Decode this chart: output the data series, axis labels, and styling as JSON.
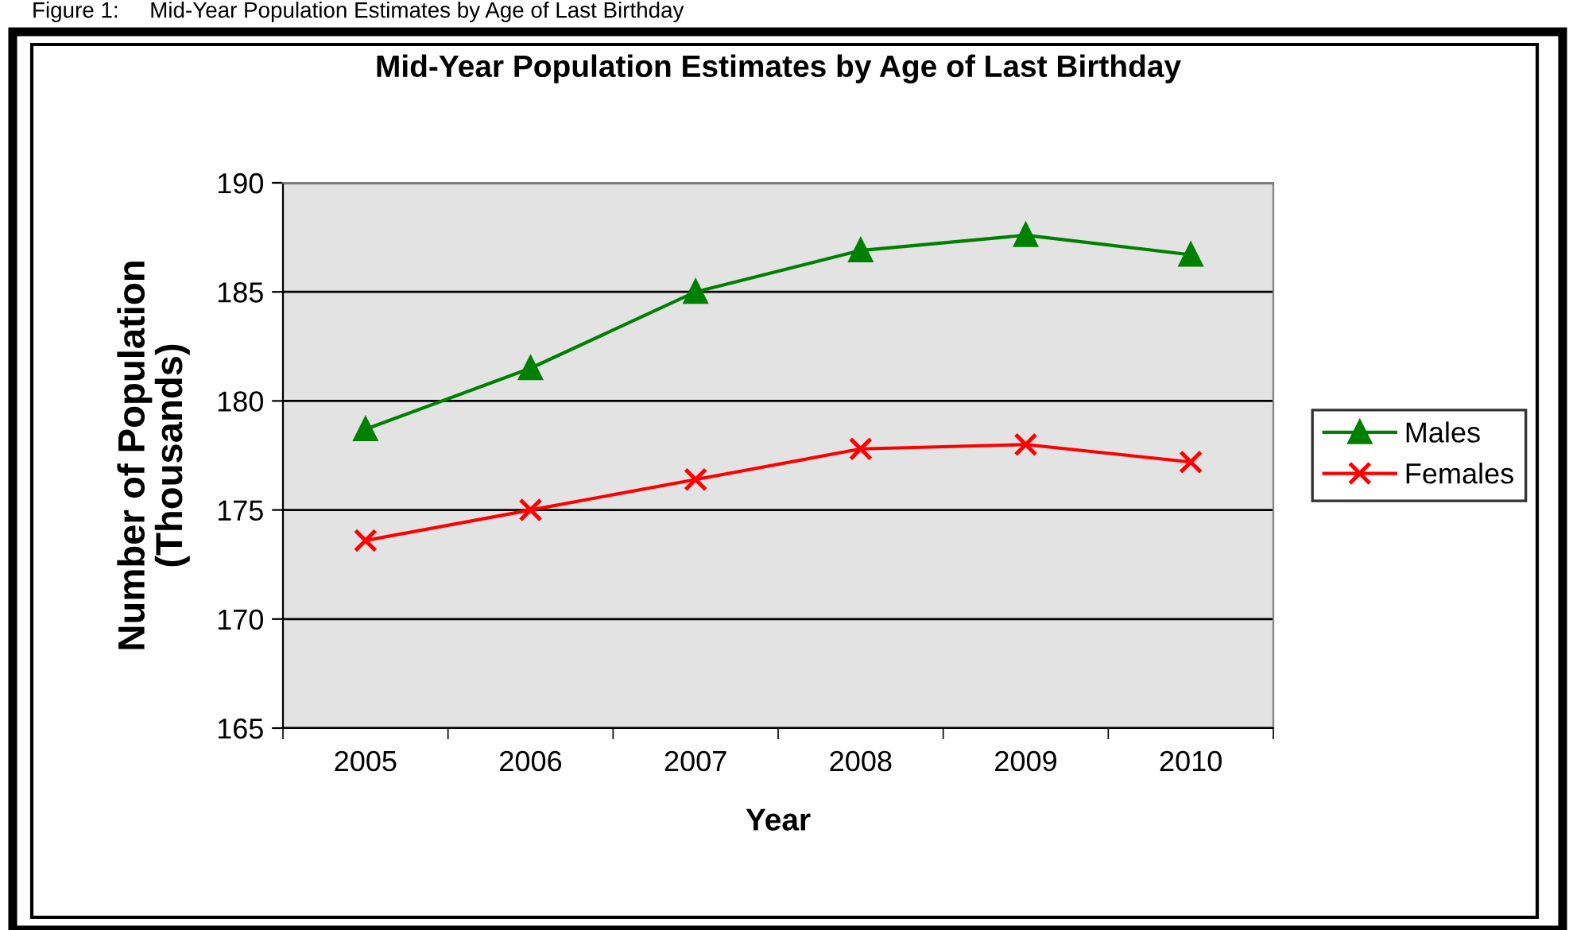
{
  "chart_data": {
    "type": "line",
    "title": "Mid-Year Population Estimates by Age of Last Birthday",
    "xlabel": "Year",
    "ylabel": "Number of Population\n(Thousands)",
    "annotations": [
      "Figure 1:     Mid-Year Population Estimates by Age of Last Birthday"
    ],
    "categories": [
      "2005",
      "2006",
      "2007",
      "2008",
      "2009",
      "2010"
    ],
    "series": [
      {
        "name": "Males",
        "color": "#008000",
        "marker": "triangle",
        "values": [
          178.7,
          181.5,
          185.0,
          186.9,
          187.6,
          186.7
        ]
      },
      {
        "name": "Females",
        "color": "#ff0000",
        "marker": "cross",
        "values": [
          173.6,
          175.0,
          176.4,
          177.8,
          178.0,
          177.2
        ]
      }
    ],
    "ylim": [
      165,
      190
    ],
    "yticks": [
      165,
      170,
      175,
      180,
      185,
      190
    ],
    "grid": "y",
    "legend": "right"
  }
}
